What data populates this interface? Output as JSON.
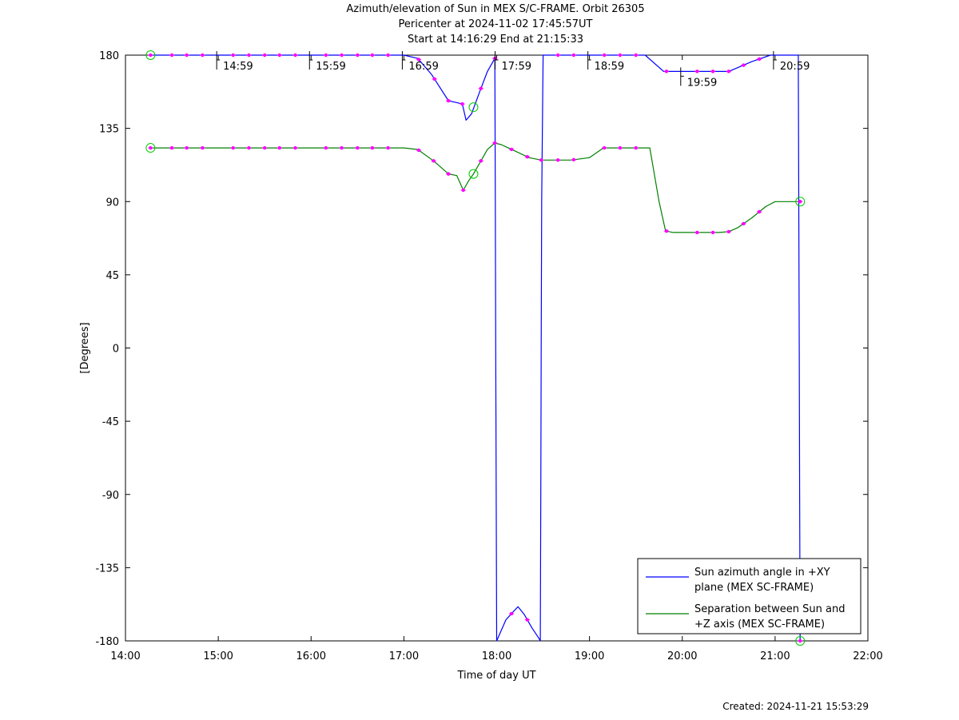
{
  "chart_data": {
    "type": "line",
    "title_lines": [
      "Azimuth/elevation of Sun in MEX S/C-FRAME.  Orbit 26305",
      "Pericenter at 2024-11-02 17:45:57UT",
      "Start at 14:16:29 End at 21:15:33"
    ],
    "xlabel": "Time of day UT",
    "ylabel": "[Degrees]",
    "xlim": [
      14.0,
      22.0
    ],
    "ylim": [
      -180,
      180
    ],
    "x_ticks": [
      {
        "value": 14,
        "label": "14:00"
      },
      {
        "value": 15,
        "label": "15:00"
      },
      {
        "value": 16,
        "label": "16:00"
      },
      {
        "value": 17,
        "label": "17:00"
      },
      {
        "value": 18,
        "label": "18:00"
      },
      {
        "value": 19,
        "label": "19:00"
      },
      {
        "value": 20,
        "label": "20:00"
      },
      {
        "value": 21,
        "label": "21:00"
      },
      {
        "value": 22,
        "label": "22:00"
      }
    ],
    "y_ticks": [
      {
        "value": 180,
        "label": "180"
      },
      {
        "value": 135,
        "label": "135"
      },
      {
        "value": 90,
        "label": "90"
      },
      {
        "value": 45,
        "label": "45"
      },
      {
        "value": 0,
        "label": "0"
      },
      {
        "value": -45,
        "label": "-45"
      },
      {
        "value": -90,
        "label": "-90"
      },
      {
        "value": -135,
        "label": "-135"
      },
      {
        "value": -180,
        "label": "-180"
      }
    ],
    "grid": false,
    "legend_position": "bottom-right",
    "hour_annotations": [
      {
        "x": 14.983,
        "y": 180,
        "label": "14:59"
      },
      {
        "x": 15.983,
        "y": 180,
        "label": "15:59"
      },
      {
        "x": 16.983,
        "y": 180,
        "label": "16:59"
      },
      {
        "x": 17.983,
        "y": 180,
        "label": "17:59"
      },
      {
        "x": 18.983,
        "y": 180,
        "label": "18:59"
      },
      {
        "x": 19.983,
        "y": 170,
        "label": "19:59"
      },
      {
        "x": 20.983,
        "y": 180,
        "label": "20:59"
      }
    ],
    "series": [
      {
        "name": "Sun azimuth angle in +XY plane (MEX SC-FRAME)",
        "legend_lines": [
          "Sun azimuth angle in +XY",
          "plane (MEX SC-FRAME)"
        ],
        "color": "#0000ff",
        "x": [
          14.27,
          15.0,
          16.0,
          17.0,
          17.15,
          17.3,
          17.48,
          17.63,
          17.67,
          17.73,
          17.82,
          17.9,
          17.98,
          17.985,
          17.99,
          17.995,
          18.0,
          18.1,
          18.18,
          18.23,
          18.3,
          18.38,
          18.45,
          18.47,
          18.475,
          18.48,
          18.485,
          18.5,
          19.0,
          19.6,
          19.8,
          20.0,
          20.3,
          20.5,
          20.75,
          20.95,
          21.1,
          21.2,
          21.25,
          21.255,
          21.26,
          21.265,
          21.27
        ],
        "y": [
          180,
          180,
          180,
          180,
          178,
          168,
          152,
          150,
          140,
          144,
          158,
          170,
          178,
          90,
          0,
          -90,
          -180,
          -167,
          -162,
          -159,
          -164,
          -172,
          -178,
          -180,
          -90,
          0,
          90,
          180,
          180,
          180,
          170,
          170,
          170,
          170,
          176,
          180,
          180,
          180,
          180,
          90,
          0,
          -90,
          -180
        ]
      },
      {
        "name": "Separation between Sun and +Z axis (MEX SC-FRAME)",
        "legend_lines": [
          "Separation between Sun and",
          "+Z axis (MEX SC-FRAME)"
        ],
        "color": "#008000",
        "x": [
          14.27,
          14.5,
          15.0,
          15.5,
          16.0,
          16.5,
          17.0,
          17.15,
          17.32,
          17.48,
          17.57,
          17.64,
          17.7,
          17.75,
          17.83,
          17.9,
          17.98,
          18.05,
          18.2,
          18.35,
          18.48,
          18.6,
          18.8,
          19.0,
          19.05,
          19.15,
          19.35,
          19.5,
          19.65,
          19.75,
          19.82,
          19.9,
          20.0,
          20.2,
          20.4,
          20.5,
          20.6,
          20.75,
          20.9,
          21.0,
          21.15,
          21.27
        ],
        "y": [
          123,
          123,
          123,
          123,
          123,
          123,
          123,
          122,
          115,
          107,
          106,
          97,
          103,
          107,
          115,
          122,
          126,
          125,
          121,
          117,
          115.5,
          115.5,
          115.5,
          117,
          119,
          123,
          123,
          123,
          123,
          90,
          72,
          71,
          71,
          71,
          71,
          71.5,
          74,
          80,
          87,
          90,
          90,
          90
        ]
      }
    ],
    "markers": {
      "dot_color": "#ff00ff",
      "circle_color": "#00cc00",
      "azimuth_x": [
        14.27,
        14.5,
        14.66,
        14.83,
        15.16,
        15.33,
        15.5,
        15.66,
        15.83,
        16.16,
        16.33,
        16.5,
        16.66,
        16.83,
        17.16,
        17.33,
        17.48,
        17.63,
        17.83,
        17.98,
        18.16,
        18.33,
        18.66,
        18.83,
        19.16,
        19.33,
        19.5,
        19.83,
        20.16,
        20.33,
        20.5,
        20.66,
        20.83,
        21.27
      ],
      "separation_x": [
        14.27,
        14.5,
        14.66,
        14.83,
        15.16,
        15.33,
        15.5,
        15.66,
        15.83,
        16.16,
        16.33,
        16.5,
        16.66,
        16.83,
        17.16,
        17.32,
        17.48,
        17.64,
        17.83,
        17.98,
        18.16,
        18.33,
        18.48,
        18.66,
        18.83,
        19.16,
        19.33,
        19.5,
        19.83,
        20.16,
        20.33,
        20.5,
        20.66,
        20.83,
        21.27
      ],
      "circles": [
        {
          "x": 14.27,
          "y": 180
        },
        {
          "x": 17.75,
          "y": 148
        },
        {
          "x": 14.27,
          "y": 123
        },
        {
          "x": 17.75,
          "y": 107
        },
        {
          "x": 21.27,
          "y": 90
        },
        {
          "x": 21.27,
          "y": -180
        }
      ]
    }
  },
  "footer": {
    "created": "Created: 2024-11-21 15:53:29"
  }
}
